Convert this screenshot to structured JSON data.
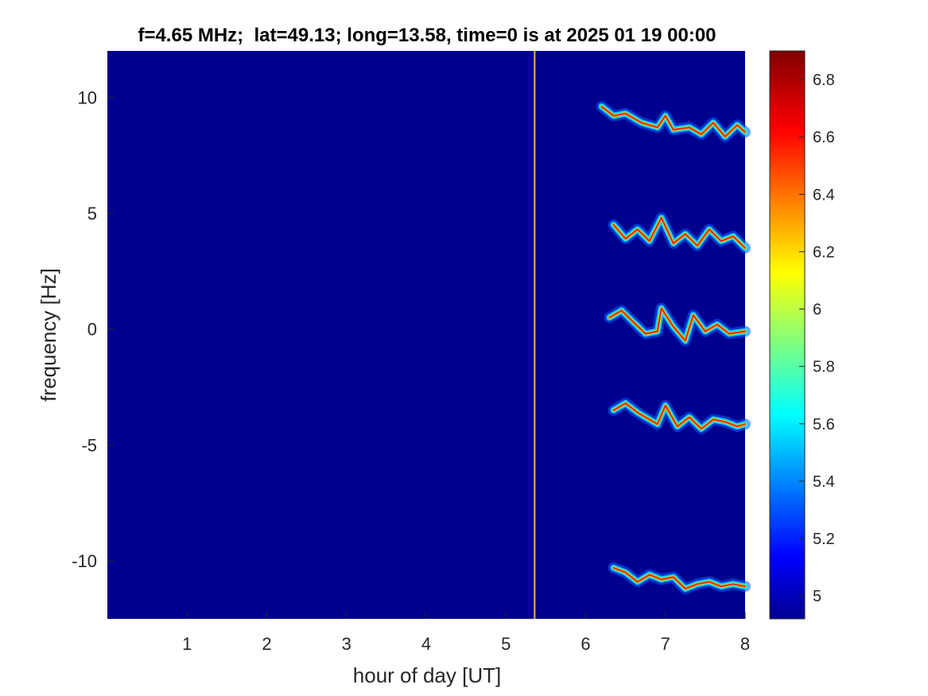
{
  "chart_data": {
    "type": "heatmap",
    "title": "f=4.65 MHz;  lat=49.13; long=13.58, time=0 is at 2025 01 19 00:00",
    "xlabel": "hour of day [UT]",
    "ylabel": "frequency [Hz]",
    "xlim": [
      0,
      8
    ],
    "ylim": [
      -12.5,
      12
    ],
    "xticks": [
      1,
      2,
      3,
      4,
      5,
      6,
      7,
      8
    ],
    "xtick_labels": [
      "1",
      "2",
      "3",
      "4",
      "5",
      "6",
      "7",
      "8"
    ],
    "yticks": [
      10,
      5,
      0,
      -5,
      -10
    ],
    "ytick_labels": [
      "10",
      "5",
      "0",
      "-5",
      "-10"
    ],
    "colormap": "jet",
    "background_color": "#00008f",
    "colorbar": {
      "range": [
        4.92,
        6.9
      ],
      "ticks": [
        6.8,
        6.6,
        6.4,
        6.2,
        6,
        5.8,
        5.6,
        5.4,
        5.2,
        5
      ],
      "tick_labels": [
        "6.8",
        "6.6",
        "6.4",
        "6.2",
        "6",
        "5.8",
        "5.6",
        "5.4",
        "5.2",
        "5"
      ]
    },
    "interference_line": {
      "x": 5.36,
      "color": "#ffaa44"
    },
    "traces": [
      {
        "x": [
          6.2,
          6.35,
          6.5,
          6.7,
          6.9,
          7.0,
          7.1,
          7.3,
          7.45,
          7.6,
          7.75,
          7.9,
          8.0
        ],
        "y": [
          9.6,
          9.2,
          9.3,
          8.9,
          8.7,
          9.2,
          8.6,
          8.7,
          8.4,
          8.9,
          8.3,
          8.8,
          8.5
        ]
      },
      {
        "x": [
          6.35,
          6.5,
          6.65,
          6.8,
          6.95,
          7.1,
          7.25,
          7.4,
          7.55,
          7.7,
          7.85,
          8.0
        ],
        "y": [
          4.5,
          3.9,
          4.3,
          3.8,
          4.8,
          3.7,
          4.1,
          3.6,
          4.3,
          3.8,
          4.0,
          3.5
        ]
      },
      {
        "x": [
          6.3,
          6.45,
          6.6,
          6.75,
          6.9,
          6.95,
          7.1,
          7.25,
          7.35,
          7.5,
          7.65,
          7.8,
          8.0
        ],
        "y": [
          0.5,
          0.8,
          0.3,
          -0.2,
          -0.1,
          0.9,
          0.1,
          -0.5,
          0.6,
          -0.1,
          0.2,
          -0.2,
          -0.1
        ]
      },
      {
        "x": [
          6.35,
          6.5,
          6.65,
          6.8,
          6.9,
          7.0,
          7.15,
          7.3,
          7.45,
          7.6,
          7.75,
          7.9,
          8.0
        ],
        "y": [
          -3.5,
          -3.2,
          -3.6,
          -3.9,
          -4.1,
          -3.3,
          -4.2,
          -3.8,
          -4.3,
          -3.9,
          -4.0,
          -4.2,
          -4.1
        ]
      },
      {
        "x": [
          6.35,
          6.5,
          6.65,
          6.8,
          6.95,
          7.1,
          7.25,
          7.4,
          7.55,
          7.7,
          7.85,
          8.0
        ],
        "y": [
          -10.3,
          -10.5,
          -10.9,
          -10.6,
          -10.8,
          -10.7,
          -11.2,
          -11.0,
          -10.9,
          -11.1,
          -11.0,
          -11.1
        ]
      }
    ]
  }
}
